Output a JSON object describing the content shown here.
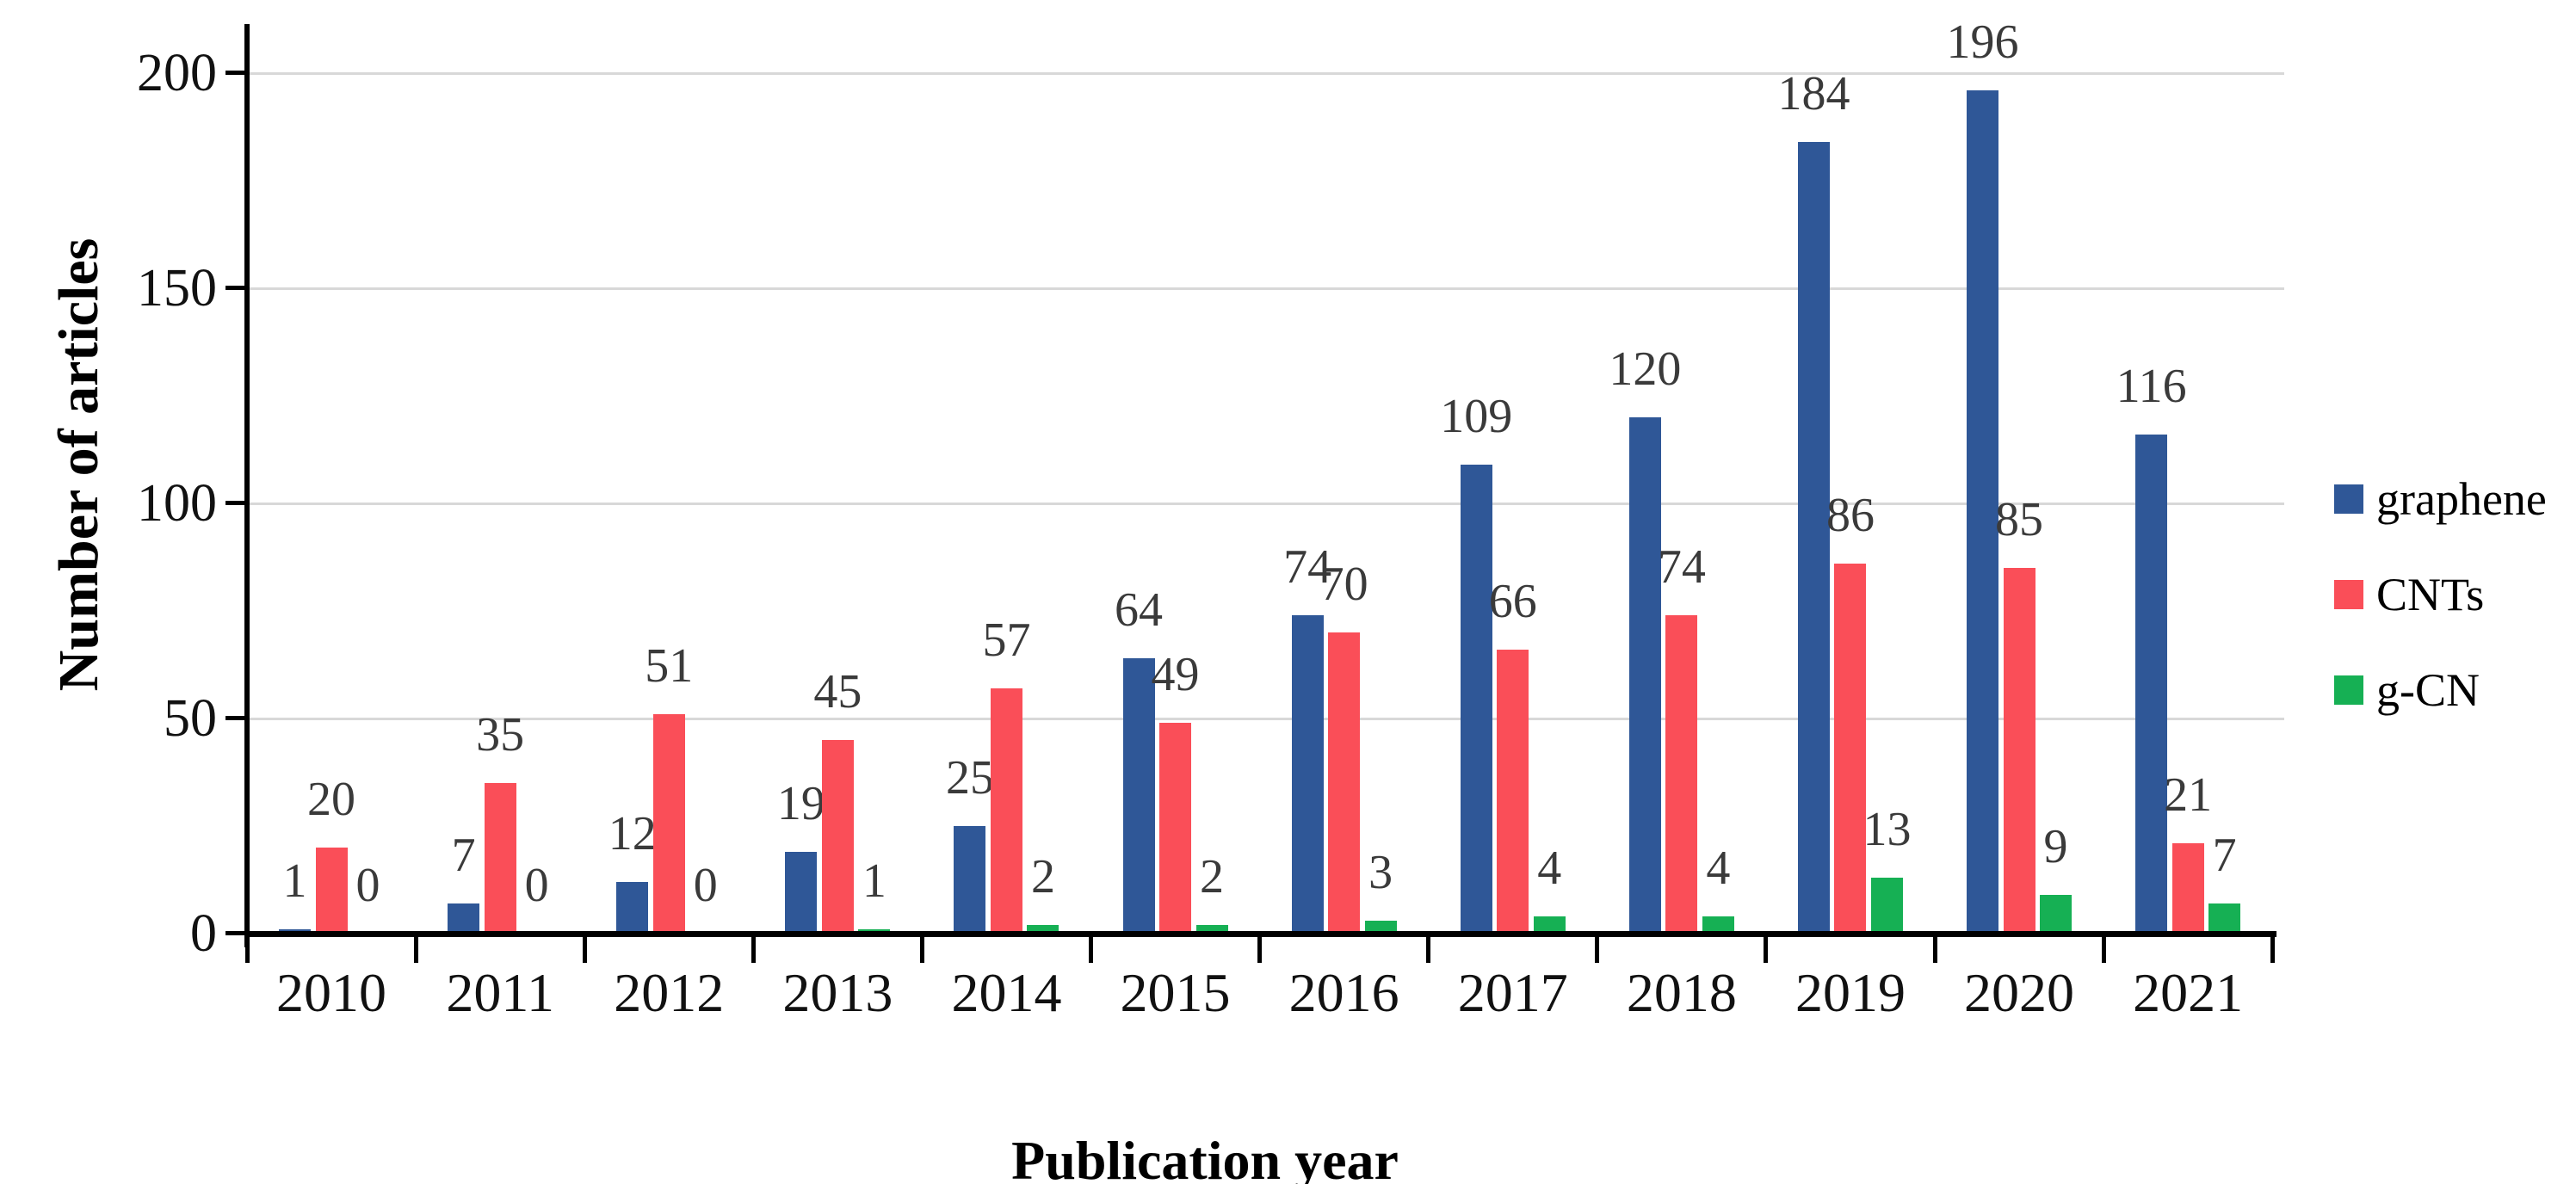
{
  "chart_data": {
    "type": "bar",
    "title": "",
    "xlabel": "Publication year",
    "ylabel": "Number of articles",
    "categories": [
      "2010",
      "2011",
      "2012",
      "2013",
      "2014",
      "2015",
      "2016",
      "2017",
      "2018",
      "2019",
      "2020",
      "2021"
    ],
    "series": [
      {
        "name": "graphene",
        "color": "#2F5797",
        "values": [
          1,
          7,
          12,
          19,
          25,
          64,
          74,
          109,
          120,
          184,
          196,
          116
        ]
      },
      {
        "name": "CNTs",
        "color": "#FA4E58",
        "values": [
          20,
          35,
          51,
          45,
          57,
          49,
          70,
          66,
          74,
          86,
          85,
          21
        ]
      },
      {
        "name": "g-CN",
        "color": "#16B054",
        "values": [
          0,
          0,
          0,
          1,
          2,
          2,
          3,
          4,
          4,
          13,
          9,
          7
        ]
      }
    ],
    "ylim": [
      0,
      200
    ],
    "yticks": [
      0,
      50,
      100,
      150,
      200
    ],
    "grid": true,
    "legend_position": "right",
    "data_labels": true
  },
  "colors": {
    "gridline": "#D8D8D8",
    "axis": "#000000",
    "data_label": "#3a3a3a"
  }
}
